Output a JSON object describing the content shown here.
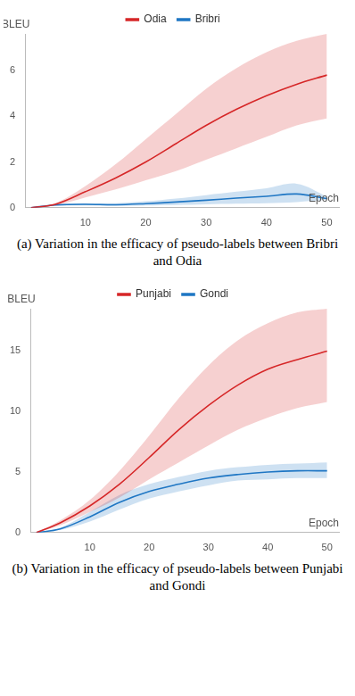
{
  "chart_data": [
    {
      "type": "line",
      "title": "(a) Variation in the efficacy of pseudo-labels between Bribri and Odia",
      "x_label": "Epoch",
      "y_label": "BLEU",
      "x": [
        1,
        5,
        10,
        15,
        20,
        25,
        30,
        35,
        40,
        45,
        50
      ],
      "xlim": [
        0,
        52
      ],
      "xticks": [
        10,
        20,
        30,
        40,
        50
      ],
      "ylim": [
        0,
        7.6
      ],
      "yticks": [
        0,
        2,
        4,
        6
      ],
      "grid": false,
      "legend": "top",
      "series": [
        {
          "name": "Odia",
          "color": "#d62728",
          "values": [
            0,
            0.15,
            0.7,
            1.3,
            2.0,
            2.8,
            3.6,
            4.3,
            4.9,
            5.4,
            5.8
          ],
          "lower": [
            0,
            0.1,
            0.45,
            0.8,
            1.2,
            1.6,
            2.1,
            2.6,
            3.1,
            3.6,
            3.9
          ],
          "upper": [
            0,
            0.2,
            0.95,
            1.9,
            3.0,
            4.1,
            5.2,
            6.1,
            6.8,
            7.3,
            7.6
          ]
        },
        {
          "name": "Bribri",
          "color": "#1f77c4",
          "values": [
            0,
            0.12,
            0.15,
            0.13,
            0.18,
            0.25,
            0.33,
            0.42,
            0.5,
            0.6,
            0.4
          ],
          "lower": [
            0,
            0.08,
            0.1,
            0.08,
            0.1,
            0.12,
            0.15,
            0.18,
            0.2,
            0.25,
            0.35
          ],
          "upper": [
            0,
            0.16,
            0.2,
            0.2,
            0.28,
            0.4,
            0.55,
            0.7,
            0.85,
            1.05,
            0.5
          ]
        }
      ]
    },
    {
      "type": "line",
      "title": "(b) Variation in the efficacy of pseudo-labels between Punjabi and Gondi",
      "x_label": "Epoch",
      "y_label": "BLEU",
      "x": [
        1,
        5,
        10,
        15,
        20,
        25,
        30,
        35,
        40,
        45,
        50
      ],
      "xlim": [
        0,
        52
      ],
      "xticks": [
        10,
        20,
        30,
        40,
        50
      ],
      "ylim": [
        0,
        18.5
      ],
      "yticks": [
        0,
        5,
        10,
        15
      ],
      "grid": false,
      "legend": "top",
      "series": [
        {
          "name": "Punjabi",
          "color": "#d62728",
          "values": [
            0,
            0.8,
            2.2,
            4.0,
            6.2,
            8.5,
            10.5,
            12.2,
            13.5,
            14.3,
            15.0
          ],
          "lower": [
            0,
            0.6,
            1.7,
            2.9,
            4.4,
            5.8,
            7.2,
            8.5,
            9.5,
            10.3,
            10.8
          ],
          "upper": [
            0,
            1.0,
            2.7,
            5.1,
            8.0,
            11.1,
            13.8,
            15.9,
            17.3,
            18.2,
            18.5
          ]
        },
        {
          "name": "Gondi",
          "color": "#1f77c4",
          "values": [
            0,
            0.3,
            1.3,
            2.5,
            3.4,
            4.0,
            4.5,
            4.8,
            5.0,
            5.1,
            5.1
          ],
          "lower": [
            0,
            0.2,
            0.9,
            1.9,
            2.8,
            3.4,
            3.9,
            4.3,
            4.4,
            4.5,
            4.5
          ],
          "upper": [
            0,
            0.4,
            1.7,
            3.1,
            4.0,
            4.6,
            5.1,
            5.4,
            5.6,
            5.7,
            5.8
          ]
        }
      ]
    }
  ]
}
